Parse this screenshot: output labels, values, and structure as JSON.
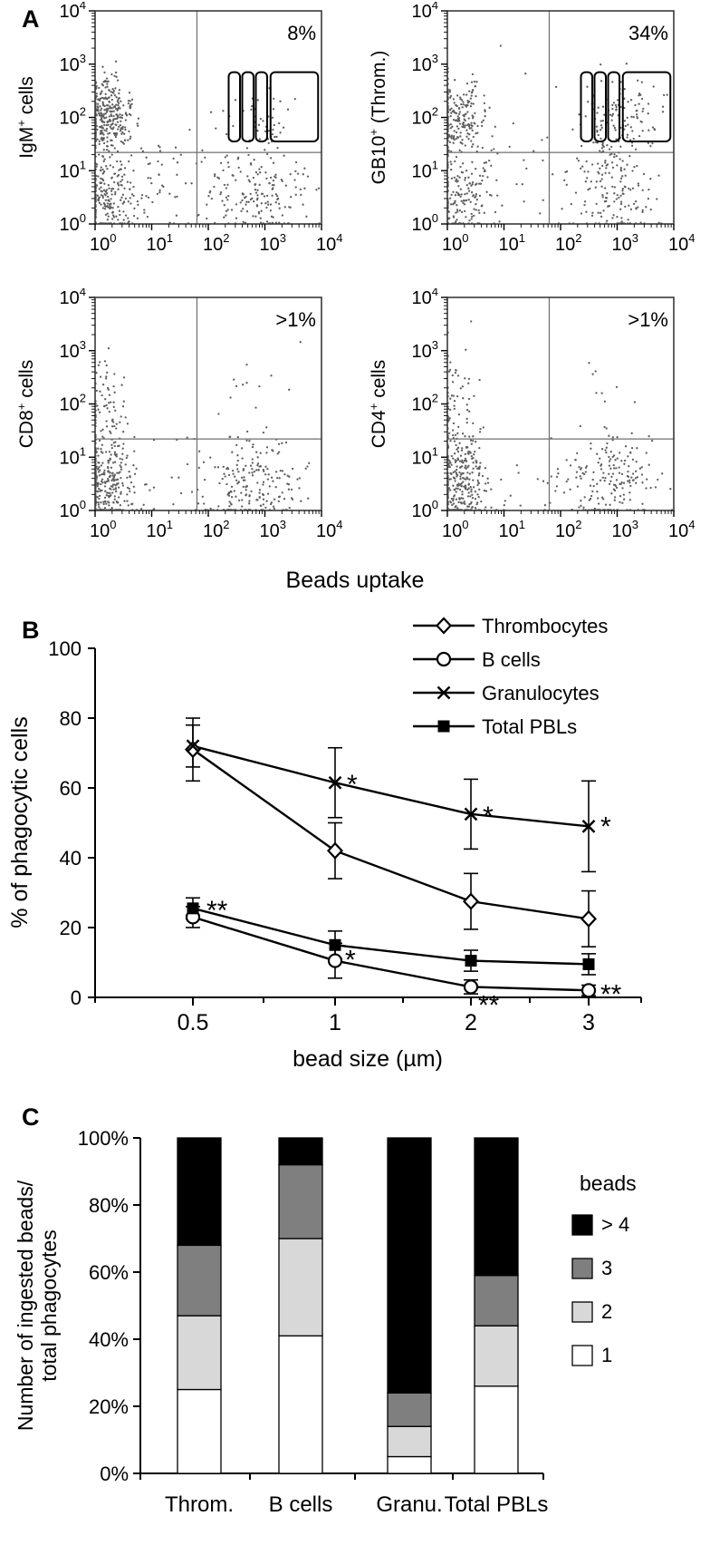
{
  "panel_labels": {
    "A": "A",
    "B": "B",
    "C": "C"
  },
  "chart_data": [
    {
      "type": "scatter",
      "panel": "A",
      "xlabel": "Beads uptake",
      "xscale": "log",
      "yscale": "log",
      "xlim": [
        1,
        10000
      ],
      "ylim": [
        1,
        10000
      ],
      "tick_exponents": [
        0,
        1,
        2,
        3,
        4
      ],
      "quadrant_lines": {
        "x": 63,
        "y": 22
      },
      "subplots": [
        {
          "ylabel": "IgM+ cells",
          "quadrant_percent_label": "8%",
          "gates_drawn": true
        },
        {
          "ylabel": "GB10+ (Throm.)",
          "quadrant_percent_label": "34%",
          "gates_drawn": true
        },
        {
          "ylabel": "CD8+ cells",
          "quadrant_percent_label": ">1%",
          "gates_drawn": false
        },
        {
          "ylabel": "CD4+ cells",
          "quadrant_percent_label": ">1%",
          "gates_drawn": false
        }
      ]
    },
    {
      "type": "line",
      "panel": "B",
      "categories": [
        "0.5",
        "1",
        "2",
        "3"
      ],
      "xlabel": "bead size (µm)",
      "ylabel": "% of phagocytic cells",
      "ylim": [
        0,
        100
      ],
      "yticks": [
        0,
        20,
        40,
        60,
        80,
        100
      ],
      "legend_position": "top-right",
      "series": [
        {
          "name": "Thrombocytes",
          "marker": "diamond-open",
          "values": [
            71,
            42,
            27.5,
            22.5
          ],
          "errors": [
            9,
            8,
            8,
            8
          ]
        },
        {
          "name": "B cells",
          "marker": "circle-open",
          "values": [
            23,
            10.5,
            3,
            2
          ],
          "errors": [
            3,
            5,
            2,
            1.5
          ]
        },
        {
          "name": "Granulocytes",
          "marker": "x",
          "values": [
            72,
            61.5,
            52.5,
            49
          ],
          "errors": [
            6,
            10,
            10,
            13
          ]
        },
        {
          "name": "Total PBLs",
          "marker": "square-filled",
          "values": [
            25.5,
            15,
            10.5,
            9.5
          ],
          "errors": [
            3,
            4,
            3,
            3
          ]
        }
      ],
      "annotations": [
        {
          "series": "Granulocytes",
          "index": 1,
          "text": "*"
        },
        {
          "series": "Granulocytes",
          "index": 2,
          "text": "*"
        },
        {
          "series": "Granulocytes",
          "index": 3,
          "text": "*"
        },
        {
          "series": "Total PBLs",
          "index": 0,
          "text": "**"
        },
        {
          "series": "Total PBLs",
          "index": 1,
          "text": "*"
        },
        {
          "series": "B cells",
          "index": 2,
          "text": "**"
        },
        {
          "series": "B cells",
          "index": 3,
          "text": "**"
        }
      ]
    },
    {
      "type": "stacked-bar",
      "panel": "C",
      "categories": [
        "Throm.",
        "B cells",
        "Granu.",
        "Total PBLs"
      ],
      "ylabel": "Number of ingested beads/ total phagocytes",
      "yticks": [
        0,
        20,
        40,
        60,
        80,
        100
      ],
      "ytick_labels": [
        "0%",
        "20%",
        "40%",
        "60%",
        "80%",
        "100%"
      ],
      "legend_title": "beads",
      "legend_order": [
        "> 4",
        "3",
        "2",
        "1"
      ],
      "series": [
        {
          "name": "1",
          "color": "#ffffff",
          "values": [
            25,
            41,
            5,
            26
          ]
        },
        {
          "name": "2",
          "color": "#d8d8d8",
          "values": [
            22,
            29,
            9,
            18
          ]
        },
        {
          "name": "3",
          "color": "#7f7f7f",
          "values": [
            21,
            22,
            10,
            15
          ]
        },
        {
          "name": "> 4",
          "color": "#000000",
          "values": [
            32,
            8,
            76,
            41
          ]
        }
      ]
    }
  ]
}
